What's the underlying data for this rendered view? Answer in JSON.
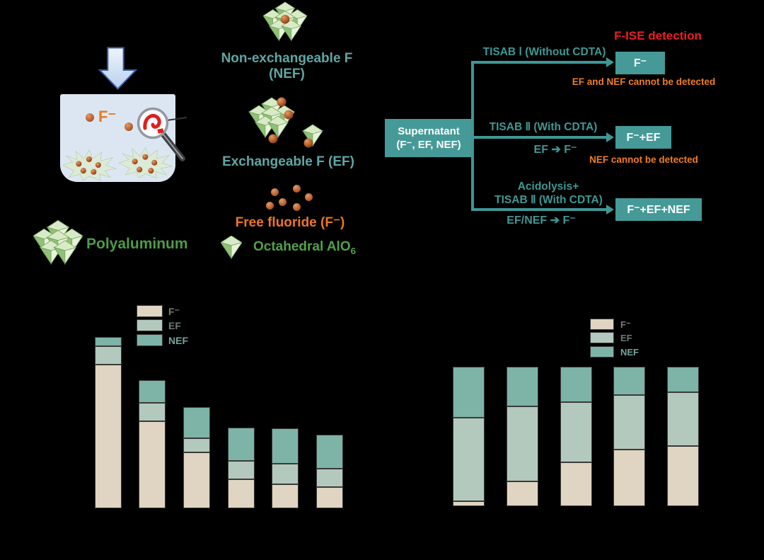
{
  "colors": {
    "background": "#000000",
    "teal_accent": "#3f9795",
    "teal_box_fill": "#459a98",
    "teal_label": "#5ea7a5",
    "orange": "#ee7d23",
    "red": "#ee1c24",
    "green": "#4f9a48",
    "beaker_fill": "#dce6f3",
    "bar_f": "#dfd5c2",
    "bar_ef": "#b3c9bd",
    "bar_nef": "#7eb3a8"
  },
  "schematic": {
    "beaker_f": "F⁻",
    "polyaluminum": "Polyaluminum",
    "octahedral": "Octahedral AlO",
    "octahedral_sub": "6",
    "nef_line1": "Non-exchangeable F",
    "nef_line2": "(NEF)",
    "ef": "Exchangeable F (EF)",
    "free_f": "Free fluoride (F⁻)"
  },
  "flow": {
    "supernatant": {
      "line1": "Supernatant",
      "line2": "(F⁻, EF, NEF)"
    },
    "title": "F-ISE detection",
    "branch1": {
      "label": "TISAB Ⅰ (Without CDTA)",
      "result": "F⁻",
      "note": "EF and NEF cannot be detected"
    },
    "branch2": {
      "label": "TISAB Ⅱ (With CDTA)",
      "reaction": "EF ➔ F⁻",
      "result": "F⁻+EF",
      "note": "NEF cannot be detected"
    },
    "branch3": {
      "label1": "Acidolysis+",
      "label2": "TISAB Ⅱ (With CDTA)",
      "reaction": "EF/NEF ➔ F⁻",
      "result": "F⁻+EF+NEF"
    }
  },
  "chart_data": [
    {
      "type": "bar",
      "stacked": true,
      "title": "",
      "categories": [
        "",
        "",
        "",
        "",
        "",
        ""
      ],
      "series": [
        {
          "name": "F⁻",
          "color": "#dfd5c2",
          "values": [
            84,
            51,
            32.5,
            17,
            14,
            12.5
          ]
        },
        {
          "name": "EF",
          "color": "#b3c9bd",
          "values": [
            10.5,
            10.5,
            8.5,
            10.5,
            12,
            10.5
          ]
        },
        {
          "name": "NEF",
          "color": "#7eb3a8",
          "values": [
            5.5,
            13.5,
            18,
            19.5,
            20.5,
            20
          ]
        }
      ],
      "ylim": [
        0,
        100
      ],
      "legend_position": "upper-left-of-plot",
      "grid": false,
      "axis_text_visible": false
    },
    {
      "type": "bar",
      "stacked": true,
      "percent": true,
      "title": "",
      "categories": [
        "",
        "",
        "",
        "",
        ""
      ],
      "series": [
        {
          "name": "F⁻",
          "color": "#dfd5c2",
          "values": [
            3.5,
            18,
            31.5,
            40.5,
            43
          ]
        },
        {
          "name": "EF",
          "color": "#b3c9bd",
          "values": [
            60,
            53.5,
            43,
            39,
            38.5
          ]
        },
        {
          "name": "NEF",
          "color": "#7eb3a8",
          "values": [
            36.5,
            28.5,
            25.5,
            20.5,
            18.5
          ]
        }
      ],
      "ylim": [
        0,
        100
      ],
      "legend_position": "upper-right-of-plot",
      "grid": false,
      "axis_text_visible": false
    }
  ]
}
